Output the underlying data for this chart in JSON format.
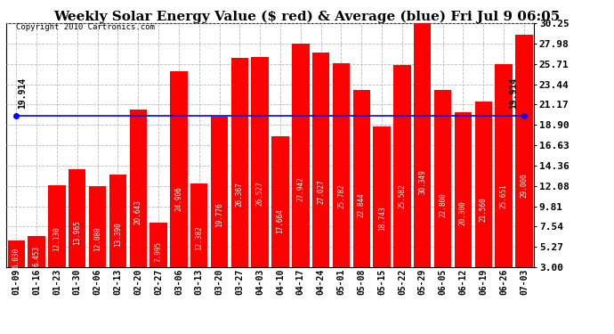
{
  "title": "Weekly Solar Energy Value ($ red) & Average (blue) Fri Jul 9 06:05",
  "copyright": "Copyright 2010 Cartronics.com",
  "average_label": "19.914",
  "average_value": 19.914,
  "categories": [
    "01-09",
    "01-16",
    "01-23",
    "01-30",
    "02-06",
    "02-13",
    "02-20",
    "02-27",
    "03-06",
    "03-13",
    "03-20",
    "03-27",
    "04-03",
    "04-10",
    "04-17",
    "04-24",
    "05-01",
    "05-08",
    "05-15",
    "05-22",
    "05-29",
    "06-05",
    "06-12",
    "06-19",
    "06-26",
    "07-03"
  ],
  "values": [
    6.03,
    6.453,
    12.13,
    13.965,
    12.08,
    13.39,
    20.643,
    7.995,
    24.906,
    12.382,
    19.776,
    26.367,
    26.527,
    17.664,
    27.942,
    27.027,
    25.782,
    22.844,
    18.743,
    25.582,
    30.349,
    22.8,
    20.3,
    21.56,
    25.651,
    29.0
  ],
  "bar_color": "#ff0000",
  "avg_line_color": "#0000ff",
  "background_color": "#ffffff",
  "grid_color": "#bbbbbb",
  "ylim_min": 3.0,
  "ylim_max": 30.25,
  "yticks": [
    3.0,
    5.27,
    7.54,
    9.81,
    12.08,
    14.36,
    16.63,
    18.9,
    21.17,
    23.44,
    25.71,
    27.98,
    30.25
  ],
  "title_fontsize": 11,
  "tick_fontsize": 7,
  "bar_label_fontsize": 5.5,
  "avg_fontsize": 7,
  "copyright_fontsize": 6.5,
  "ytick_fontsize": 8
}
